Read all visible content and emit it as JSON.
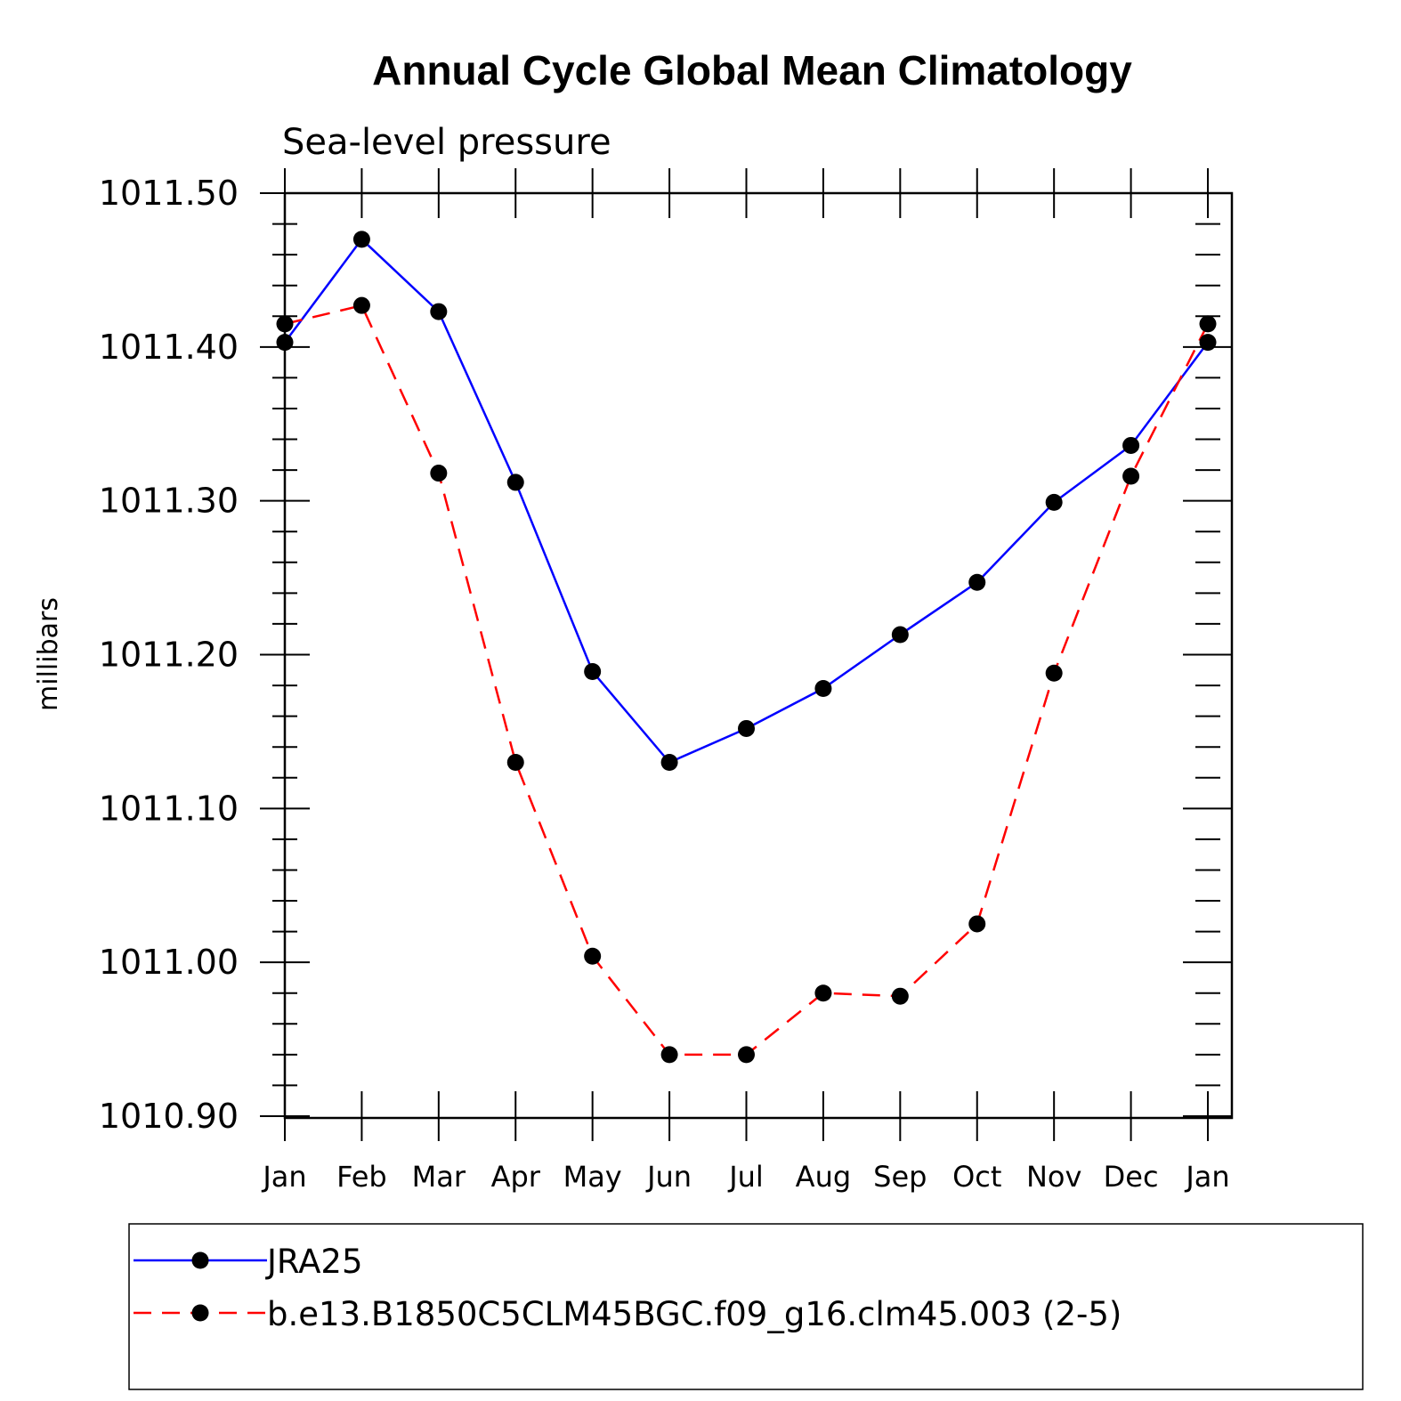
{
  "chart_data": {
    "type": "line",
    "title": "Annual Cycle Global Mean Climatology",
    "subtitle": "Sea-level pressure",
    "ylabel": "millibars",
    "xlabel": "",
    "categories": [
      "Jan",
      "Feb",
      "Mar",
      "Apr",
      "May",
      "Jun",
      "Jul",
      "Aug",
      "Sep",
      "Oct",
      "Nov",
      "Dec",
      "Jan"
    ],
    "ylim": [
      1010.9,
      1011.5
    ],
    "yticks": [
      1010.9,
      1011.0,
      1011.1,
      1011.2,
      1011.3,
      1011.4,
      1011.5
    ],
    "ytick_labels": [
      "1010.90",
      "1011.00",
      "1011.10",
      "1011.20",
      "1011.30",
      "1011.40",
      "1011.50"
    ],
    "series": [
      {
        "name": "JRA25",
        "color": "#0000ff",
        "dash": "solid",
        "values": [
          1011.403,
          1011.47,
          1011.423,
          1011.312,
          1011.189,
          1011.13,
          1011.152,
          1011.178,
          1011.213,
          1011.247,
          1011.299,
          1011.336,
          1011.403
        ]
      },
      {
        "name": "b.e13.B1850C5CLM45BGC.f09_g16.clm45.003 (2-5)",
        "color": "#ff0000",
        "dash": "dashed",
        "values": [
          1011.415,
          1011.427,
          1011.318,
          1011.13,
          1011.004,
          1010.94,
          1010.94,
          1010.98,
          1010.978,
          1011.025,
          1011.188,
          1011.316,
          1011.415
        ]
      }
    ],
    "marker_color": "#000000",
    "legend_position": "bottom"
  }
}
